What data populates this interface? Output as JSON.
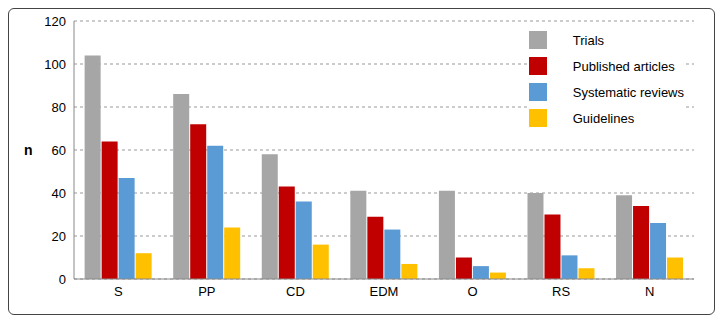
{
  "chart_data": {
    "type": "bar",
    "y_label": "n",
    "categories": [
      "S",
      "PP",
      "CD",
      "EDM",
      "O",
      "RS",
      "N"
    ],
    "series": [
      {
        "name": "Trials",
        "color": "#a6a6a6",
        "values": [
          104,
          86,
          58,
          41,
          41,
          40,
          39
        ]
      },
      {
        "name": "Published articles",
        "color": "#c00000",
        "values": [
          64,
          72,
          43,
          29,
          10,
          30,
          34
        ]
      },
      {
        "name": "Systematic reviews",
        "color": "#5b9bd5",
        "values": [
          47,
          62,
          36,
          23,
          6,
          11,
          26
        ]
      },
      {
        "name": "Guidelines",
        "color": "#ffc000",
        "values": [
          12,
          24,
          16,
          7,
          3,
          5,
          10
        ]
      }
    ],
    "ylim": [
      0,
      120
    ],
    "yticks": [
      0,
      20,
      40,
      60,
      80,
      100,
      120
    ],
    "grid": true,
    "legend": "upper right"
  }
}
